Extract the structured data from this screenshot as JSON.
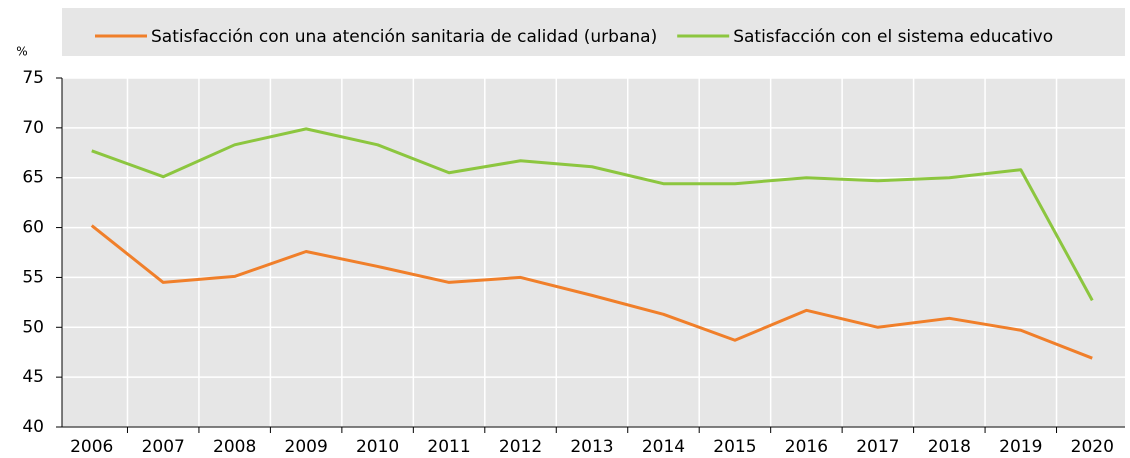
{
  "chart_data": {
    "type": "line",
    "y_label": "%",
    "categories": [
      "2006",
      "2007",
      "2008",
      "2009",
      "2010",
      "2011",
      "2012",
      "2013",
      "2014",
      "2015",
      "2016",
      "2017",
      "2018",
      "2019",
      "2020"
    ],
    "series": [
      {
        "name": "Satisfacción con una atención sanitaria de calidad (urbana)",
        "color": "#f07f2a",
        "values": [
          60.2,
          54.5,
          55.1,
          57.6,
          56.1,
          54.5,
          55.0,
          53.2,
          51.3,
          48.7,
          51.7,
          50.0,
          50.9,
          49.7,
          46.9
        ]
      },
      {
        "name": "Satisfacción con el sistema educativo",
        "color": "#8cc63f",
        "values": [
          67.7,
          65.1,
          68.3,
          69.9,
          68.3,
          65.5,
          66.7,
          66.1,
          64.4,
          64.4,
          65.0,
          64.7,
          65.0,
          65.8,
          52.7
        ]
      }
    ],
    "ylim": [
      40,
      75
    ],
    "yticks": [
      40,
      45,
      50,
      55,
      60,
      65,
      70,
      75
    ],
    "grid": true,
    "legend": "top"
  }
}
